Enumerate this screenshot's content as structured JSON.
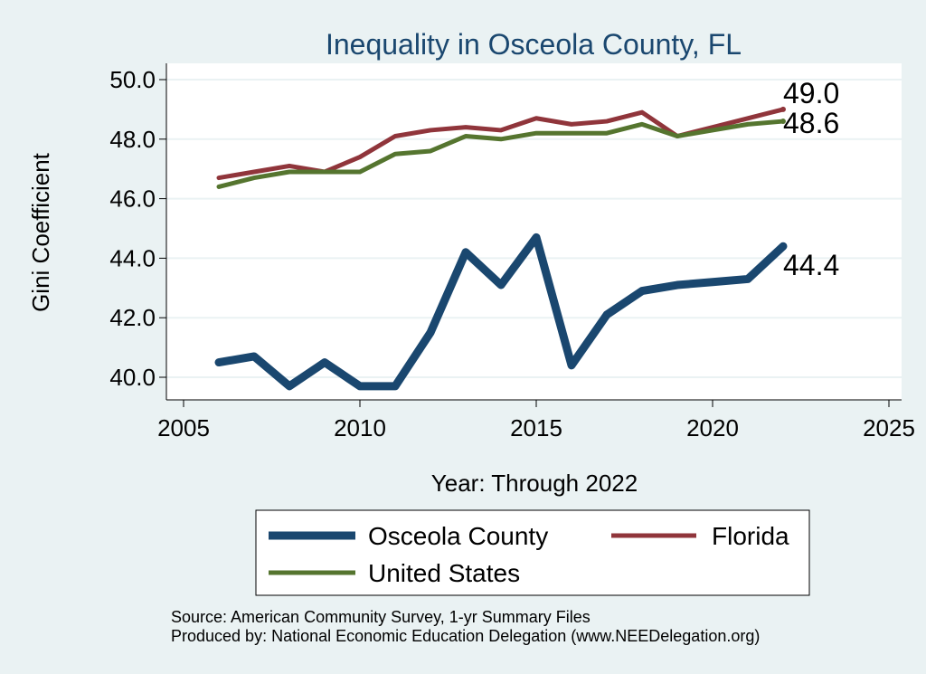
{
  "chart_data": {
    "type": "line",
    "title": "Inequality in Osceola County, FL",
    "xlabel": "Year: Through 2022",
    "ylabel": "Gini Coefficient",
    "xlim": [
      2005,
      2025
    ],
    "ylim": [
      39.5,
      50.5
    ],
    "xticks": [
      2005,
      2010,
      2015,
      2020,
      2025
    ],
    "yticks": [
      "40.0",
      "42.0",
      "44.0",
      "46.0",
      "48.0",
      "50.0"
    ],
    "grid": true,
    "legend_placement": "bottom",
    "x": [
      2006,
      2007,
      2008,
      2009,
      2010,
      2011,
      2012,
      2013,
      2014,
      2015,
      2016,
      2017,
      2018,
      2019,
      2020,
      2021,
      2022
    ],
    "series": [
      {
        "name": "Osceola County",
        "color": "#1a476f",
        "values": [
          40.5,
          40.7,
          39.7,
          40.5,
          39.7,
          39.7,
          41.5,
          44.2,
          43.1,
          44.7,
          40.4,
          42.1,
          42.9,
          43.1,
          43.2,
          43.3,
          44.4
        ],
        "end_label": "44.4"
      },
      {
        "name": "Florida",
        "color": "#90353b",
        "values": [
          46.7,
          46.9,
          47.1,
          46.9,
          47.4,
          48.1,
          48.3,
          48.4,
          48.3,
          48.7,
          48.5,
          48.6,
          48.9,
          48.1,
          48.4,
          48.7,
          49.0
        ],
        "end_label": "49.0"
      },
      {
        "name": "United States",
        "color": "#55752f",
        "values": [
          46.4,
          46.7,
          46.9,
          46.9,
          46.9,
          47.5,
          47.6,
          48.1,
          48.0,
          48.2,
          48.2,
          48.2,
          48.5,
          48.1,
          48.3,
          48.5,
          48.6
        ],
        "end_label": "48.6"
      }
    ],
    "notes": [
      "Source: American Community Survey, 1-yr Summary Files",
      "Produced by: National Economic Education Delegation (www.NEEDelegation.org)"
    ]
  }
}
